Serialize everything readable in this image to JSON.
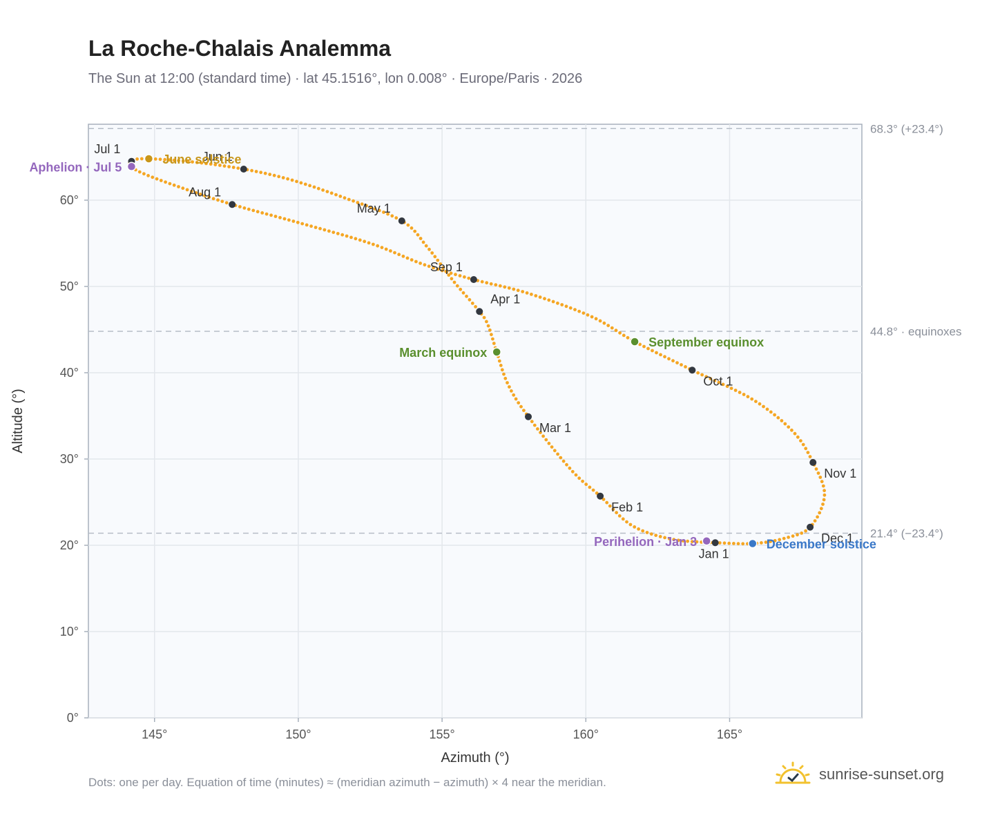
{
  "header": {
    "title": "La Roche-Chalais Analemma",
    "subtitle": "The Sun at 12:00 (standard time) · lat 45.1516°, lon 0.008° · Europe/Paris · 2026"
  },
  "footer": {
    "note": "Dots: one per day. Equation of time (minutes) ≈ (meridian azimuth − azimuth) × 4 near the meridian.",
    "brand": "sunrise-sunset.org"
  },
  "colors": {
    "curve": "#f5a623",
    "month_dot": "#333840",
    "aphelion": "#9467bd",
    "june_solstice": "#c8961a",
    "equinox": "#5a8f2e",
    "december_solstice": "#3a78c8",
    "plot_bg": "#f8fafd",
    "grid": "#e3e7ec",
    "ref_line": "#b5bcc6"
  },
  "chart_data": {
    "type": "scatter",
    "xlabel": "Azimuth (°)",
    "ylabel": "Altitude (°)",
    "xlim": [
      142.7,
      169.6
    ],
    "ylim": [
      0,
      68.8
    ],
    "x_ticks": [
      145,
      150,
      155,
      160,
      165
    ],
    "x_tick_labels": [
      "145°",
      "150°",
      "155°",
      "160°",
      "165°"
    ],
    "y_ticks": [
      0,
      10,
      20,
      30,
      40,
      50,
      60
    ],
    "y_tick_labels": [
      "0°",
      "10°",
      "20°",
      "30°",
      "40°",
      "50°",
      "60°"
    ],
    "grid": true,
    "reference_lines": [
      {
        "y": 68.3,
        "label": "68.3° (+23.4°)"
      },
      {
        "y": 44.8,
        "label": "44.8° · equinoxes"
      },
      {
        "y": 21.4,
        "label": "21.4° (−23.4°)"
      }
    ],
    "path_points": [
      {
        "azimuth": 164.5,
        "altitude": 20.3
      },
      {
        "azimuth": 163.0,
        "altitude": 20.7
      },
      {
        "azimuth": 161.6,
        "altitude": 22.3
      },
      {
        "azimuth": 160.5,
        "altitude": 25.7
      },
      {
        "azimuth": 159.5,
        "altitude": 28.7
      },
      {
        "azimuth": 158.0,
        "altitude": 34.9
      },
      {
        "azimuth": 157.3,
        "altitude": 38.6
      },
      {
        "azimuth": 156.9,
        "altitude": 42.4
      },
      {
        "azimuth": 156.6,
        "altitude": 45.5
      },
      {
        "azimuth": 156.3,
        "altitude": 47.1
      },
      {
        "azimuth": 155.4,
        "altitude": 50.6
      },
      {
        "azimuth": 154.5,
        "altitude": 54.5
      },
      {
        "azimuth": 153.6,
        "altitude": 57.6
      },
      {
        "azimuth": 151.5,
        "altitude": 60.4
      },
      {
        "azimuth": 149.7,
        "altitude": 62.4
      },
      {
        "azimuth": 148.1,
        "altitude": 63.6
      },
      {
        "azimuth": 146.4,
        "altitude": 64.4
      },
      {
        "azimuth": 144.8,
        "altitude": 64.8
      },
      {
        "azimuth": 144.2,
        "altitude": 64.6
      },
      {
        "azimuth": 144.2,
        "altitude": 63.9
      },
      {
        "azimuth": 144.6,
        "altitude": 63.1
      },
      {
        "azimuth": 145.8,
        "altitude": 61.6
      },
      {
        "azimuth": 147.7,
        "altitude": 59.5
      },
      {
        "azimuth": 150.0,
        "altitude": 57.4
      },
      {
        "azimuth": 152.5,
        "altitude": 55.0
      },
      {
        "azimuth": 154.4,
        "altitude": 52.5
      },
      {
        "azimuth": 156.1,
        "altitude": 50.8
      },
      {
        "azimuth": 158.0,
        "altitude": 49.2
      },
      {
        "azimuth": 160.2,
        "altitude": 46.5
      },
      {
        "azimuth": 161.7,
        "altitude": 43.6
      },
      {
        "azimuth": 163.7,
        "altitude": 40.3
      },
      {
        "azimuth": 165.8,
        "altitude": 36.9
      },
      {
        "azimuth": 167.2,
        "altitude": 33.2
      },
      {
        "azimuth": 167.9,
        "altitude": 29.6
      },
      {
        "azimuth": 168.3,
        "altitude": 25.8
      },
      {
        "azimuth": 167.8,
        "altitude": 22.1
      },
      {
        "azimuth": 166.9,
        "altitude": 20.8
      },
      {
        "azimuth": 165.8,
        "altitude": 20.2
      },
      {
        "azimuth": 164.5,
        "altitude": 20.3
      }
    ],
    "month_markers": [
      {
        "label": "Jan 1",
        "azimuth": 164.5,
        "altitude": 20.3,
        "label_pos": "below"
      },
      {
        "label": "Feb 1",
        "azimuth": 160.5,
        "altitude": 25.7,
        "label_pos": "below-right"
      },
      {
        "label": "Mar 1",
        "azimuth": 158.0,
        "altitude": 34.9,
        "label_pos": "below-right"
      },
      {
        "label": "Apr 1",
        "azimuth": 156.3,
        "altitude": 47.1,
        "label_pos": "above-right"
      },
      {
        "label": "May 1",
        "azimuth": 153.6,
        "altitude": 57.6,
        "label_pos": "above-left"
      },
      {
        "label": "Jun 1",
        "azimuth": 148.1,
        "altitude": 63.6,
        "label_pos": "above-left"
      },
      {
        "label": "Jul 1",
        "azimuth": 144.2,
        "altitude": 64.5,
        "label_pos": "above-left"
      },
      {
        "label": "Aug 1",
        "azimuth": 147.7,
        "altitude": 59.5,
        "label_pos": "above-left"
      },
      {
        "label": "Sep 1",
        "azimuth": 156.1,
        "altitude": 50.8,
        "label_pos": "above-left"
      },
      {
        "label": "Oct 1",
        "azimuth": 163.7,
        "altitude": 40.3,
        "label_pos": "below-right"
      },
      {
        "label": "Nov 1",
        "azimuth": 167.9,
        "altitude": 29.6,
        "label_pos": "below-right"
      },
      {
        "label": "Dec 1",
        "azimuth": 167.8,
        "altitude": 22.1,
        "label_pos": "below-right"
      }
    ],
    "events": [
      {
        "label": "Aphelion · Jul 5",
        "azimuth": 144.2,
        "altitude": 63.9,
        "color": "#9467bd",
        "label_side": "left"
      },
      {
        "label": "June solstice",
        "azimuth": 144.8,
        "altitude": 64.8,
        "color": "#c8961a",
        "label_side": "right"
      },
      {
        "label": "March equinox",
        "azimuth": 156.9,
        "altitude": 42.4,
        "color": "#5a8f2e",
        "label_side": "left"
      },
      {
        "label": "September equinox",
        "azimuth": 161.7,
        "altitude": 43.6,
        "color": "#5a8f2e",
        "label_side": "right"
      },
      {
        "label": "Perihelion · Jan 3",
        "azimuth": 164.2,
        "altitude": 20.5,
        "color": "#9467bd",
        "label_side": "left"
      },
      {
        "label": "December solstice",
        "azimuth": 165.8,
        "altitude": 20.2,
        "color": "#3a78c8",
        "label_side": "right"
      }
    ]
  }
}
